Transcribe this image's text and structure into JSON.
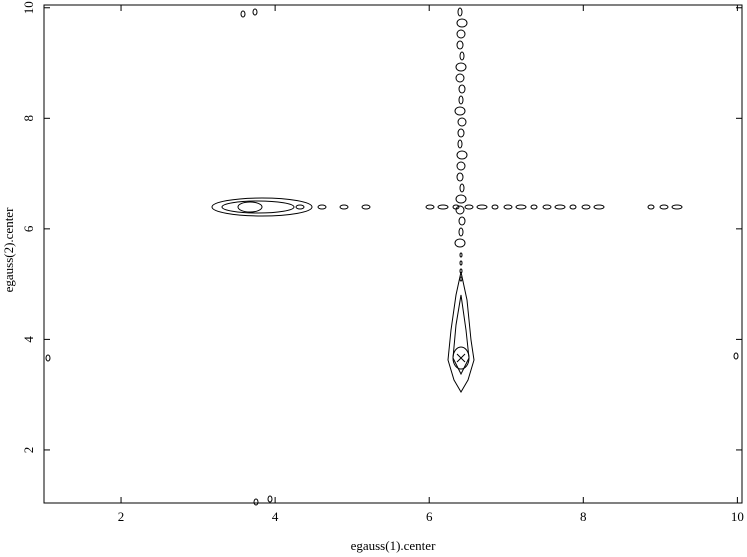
{
  "chart_data": {
    "type": "contour",
    "x_label": "egauss(1).center",
    "y_label": "egauss(2).center",
    "xlim": [
      1,
      10.06
    ],
    "ylim": [
      1.04,
      10.05
    ],
    "xticks": [
      2,
      4,
      6,
      8,
      10
    ],
    "yticks": [
      2,
      4,
      6,
      8,
      10
    ]
  }
}
